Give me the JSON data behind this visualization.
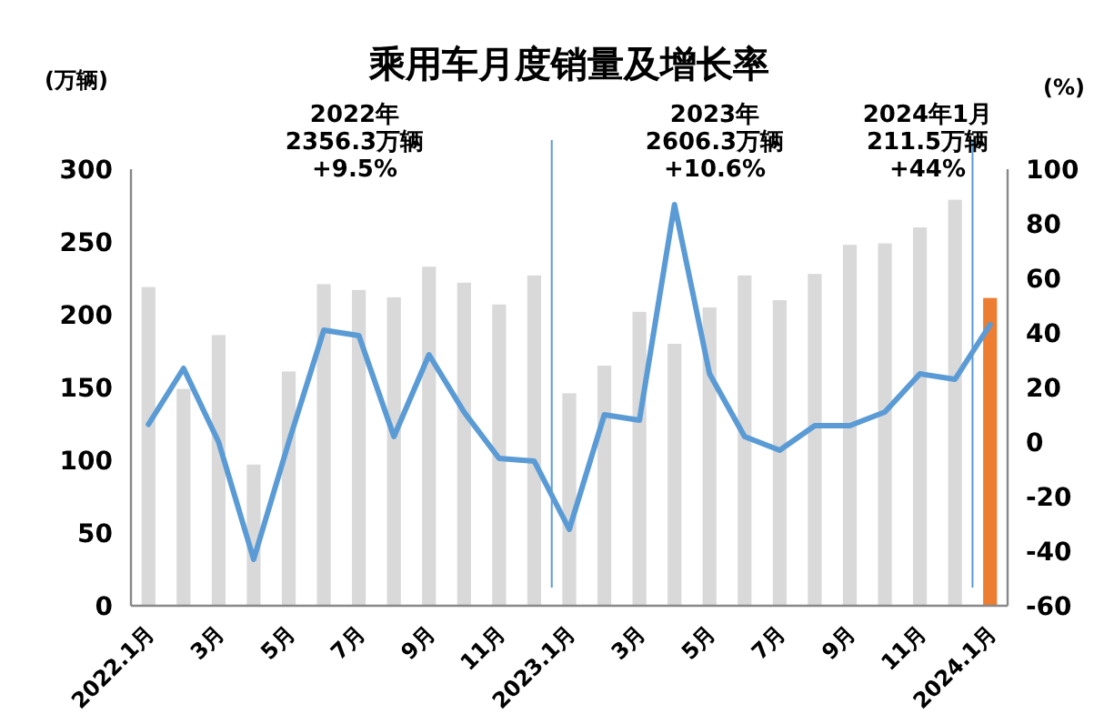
{
  "chart_data": {
    "type": "bar",
    "title": "乘用车月度销量及增长率",
    "ylabel": "(万辆)",
    "y2label": "(%)",
    "categories": [
      "2022.1月",
      null,
      "3月",
      null,
      "5月",
      null,
      "7月",
      null,
      "9月",
      null,
      "11月",
      null,
      "2023.1月",
      null,
      "3月",
      null,
      "5月",
      null,
      "7月",
      null,
      "9月",
      null,
      "11月",
      null,
      "2024.1月"
    ],
    "series": [
      {
        "colors": [
          "#d9d9d9",
          "#d9d9d9",
          "#d9d9d9",
          "#d9d9d9",
          "#d9d9d9",
          "#d9d9d9",
          "#d9d9d9",
          "#d9d9d9",
          "#d9d9d9",
          "#d9d9d9",
          "#d9d9d9",
          "#d9d9d9",
          "#d9d9d9",
          "#d9d9d9",
          "#d9d9d9",
          "#d9d9d9",
          "#d9d9d9",
          "#d9d9d9",
          "#d9d9d9",
          "#d9d9d9",
          "#d9d9d9",
          "#d9d9d9",
          "#d9d9d9",
          "#d9d9d9",
          "#ed7d31"
        ],
        "values": [
          219,
          149,
          186,
          97,
          161,
          221,
          217,
          212,
          233,
          222,
          207,
          227,
          146,
          165,
          202,
          180,
          205,
          227,
          210,
          228,
          248,
          249,
          260,
          279,
          211.5
        ]
      },
      {
        "type": "line",
        "axis": "y2",
        "color": "#5b9bd5",
        "values": [
          6.5,
          27,
          0,
          -43,
          0,
          41,
          39,
          2,
          32,
          11,
          -6,
          -7,
          -32,
          10,
          8,
          87,
          25,
          2,
          -3,
          6,
          6,
          11,
          25,
          23,
          43
        ]
      }
    ],
    "ylim": [
      0,
      300
    ],
    "yticks": [
      0,
      50,
      100,
      150,
      200,
      250,
      300
    ],
    "y2lim": [
      -60,
      100
    ],
    "y2ticks": [
      -60,
      -40,
      -20,
      0,
      20,
      40,
      60,
      80,
      100
    ],
    "annotations": [
      "2022年\n2356.3万辆\n+9.5%",
      "2023年\n2606.3万辆\n+10.6%",
      "2024年1月\n211.5万辆\n+44%"
    ],
    "grid": false
  }
}
